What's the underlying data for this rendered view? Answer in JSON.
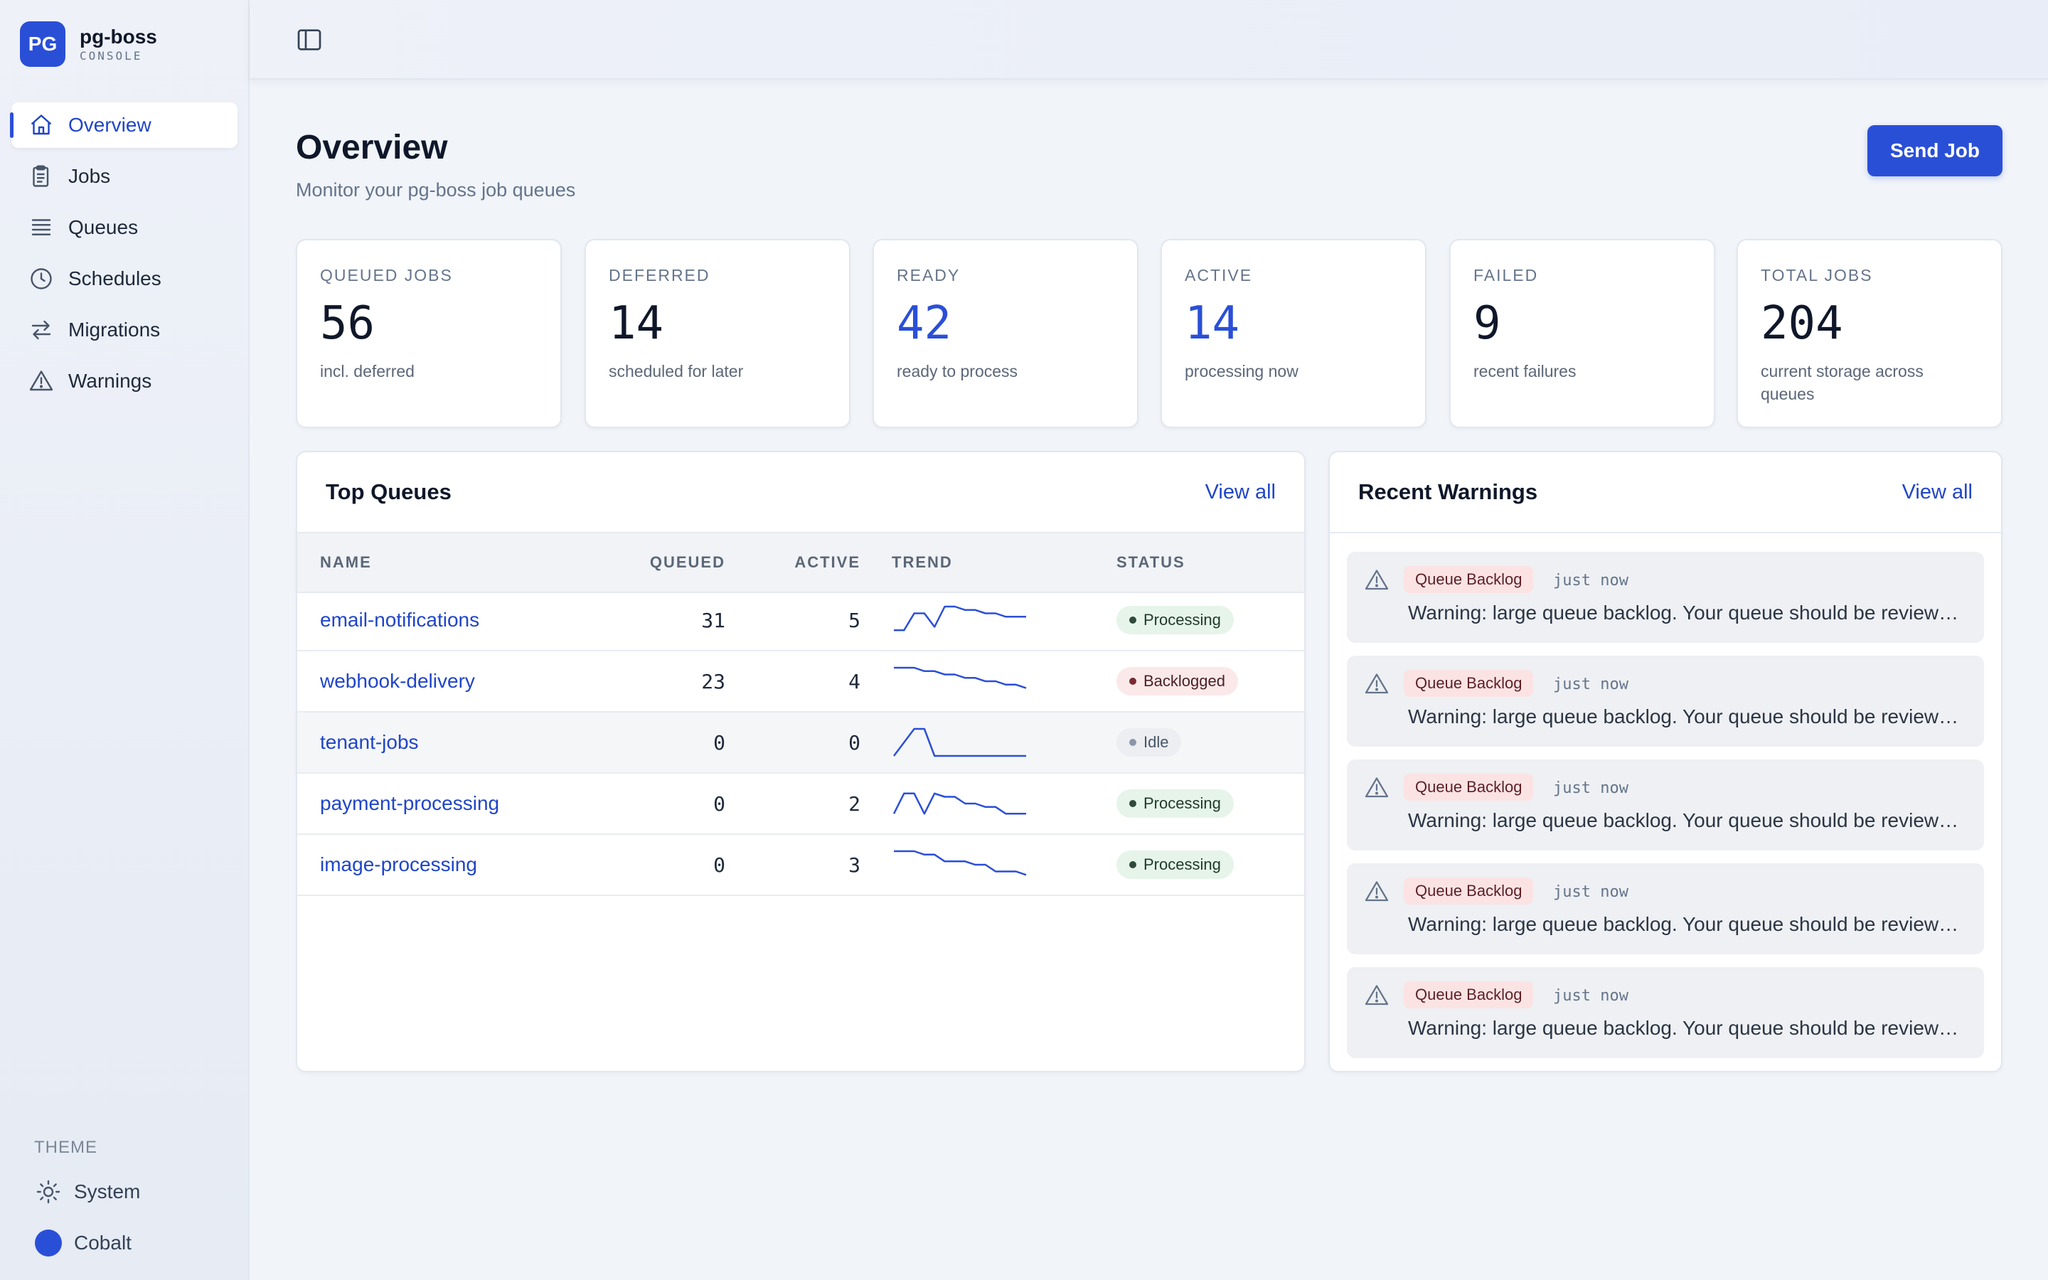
{
  "brand": {
    "logo": "PG",
    "name": "pg-boss",
    "sub": "CONSOLE"
  },
  "sidebar": {
    "items": [
      {
        "label": "Overview",
        "icon": "home-icon",
        "active": true
      },
      {
        "label": "Jobs",
        "icon": "clipboard-icon"
      },
      {
        "label": "Queues",
        "icon": "stack-icon"
      },
      {
        "label": "Schedules",
        "icon": "clock-icon"
      },
      {
        "label": "Migrations",
        "icon": "arrows-icon"
      },
      {
        "label": "Warnings",
        "icon": "warning-icon"
      }
    ],
    "theme_label": "THEME",
    "theme_mode": "System",
    "theme_color": "Cobalt"
  },
  "colors": {
    "accent": "#2a4fd7",
    "processing": "#e6f4ea",
    "backlogged": "#fbe9ea",
    "idle": "#eceef1"
  },
  "header": {
    "title": "Overview",
    "subtitle": "Monitor your pg-boss job queues",
    "send_label": "Send Job"
  },
  "stats": [
    {
      "label": "QUEUED JOBS",
      "value": "56",
      "desc": "incl. deferred"
    },
    {
      "label": "DEFERRED",
      "value": "14",
      "desc": "scheduled for later"
    },
    {
      "label": "READY",
      "value": "42",
      "desc": "ready to process"
    },
    {
      "label": "ACTIVE",
      "value": "14",
      "desc": "processing now"
    },
    {
      "label": "FAILED",
      "value": "9",
      "desc": "recent failures"
    },
    {
      "label": "TOTAL JOBS",
      "value": "204",
      "desc": "current storage across queues"
    }
  ],
  "top_queues": {
    "title": "Top Queues",
    "view_all": "View all",
    "columns": {
      "name": "NAME",
      "queued": "QUEUED",
      "active": "ACTIVE",
      "trend": "TREND",
      "status": "STATUS"
    },
    "rows": [
      {
        "name": "email-notifications",
        "queued": "31",
        "active": "5",
        "status": "Processing",
        "trend": [
          1,
          1,
          6,
          6,
          2,
          8,
          8,
          7,
          7,
          6,
          6,
          5,
          5,
          5
        ]
      },
      {
        "name": "webhook-delivery",
        "queued": "23",
        "active": "4",
        "status": "Backlogged",
        "trend": [
          8,
          8,
          8,
          7,
          7,
          6,
          6,
          5,
          5,
          4,
          4,
          3,
          3,
          2
        ]
      },
      {
        "name": "tenant-jobs",
        "queued": "0",
        "active": "0",
        "status": "Idle",
        "trend": [
          0,
          4,
          8,
          8,
          0,
          0,
          0,
          0,
          0,
          0,
          0,
          0,
          0,
          0
        ]
      },
      {
        "name": "payment-processing",
        "queued": "0",
        "active": "2",
        "status": "Processing",
        "trend": [
          1,
          7,
          7,
          1,
          7,
          6,
          6,
          4,
          4,
          3,
          3,
          1,
          1,
          1
        ]
      },
      {
        "name": "image-processing",
        "queued": "0",
        "active": "3",
        "status": "Processing",
        "trend": [
          8,
          8,
          8,
          7,
          7,
          5,
          5,
          5,
          4,
          4,
          2,
          2,
          2,
          1
        ]
      }
    ]
  },
  "recent_warnings": {
    "title": "Recent Warnings",
    "view_all": "View all",
    "items": [
      {
        "tag": "Queue Backlog",
        "time": "just now",
        "message": "Warning: large queue backlog. Your queue should be reviewed."
      },
      {
        "tag": "Queue Backlog",
        "time": "just now",
        "message": "Warning: large queue backlog. Your queue should be reviewed."
      },
      {
        "tag": "Queue Backlog",
        "time": "just now",
        "message": "Warning: large queue backlog. Your queue should be reviewed."
      },
      {
        "tag": "Queue Backlog",
        "time": "just now",
        "message": "Warning: large queue backlog. Your queue should be reviewed."
      },
      {
        "tag": "Queue Backlog",
        "time": "just now",
        "message": "Warning: large queue backlog. Your queue should be reviewed."
      }
    ]
  }
}
